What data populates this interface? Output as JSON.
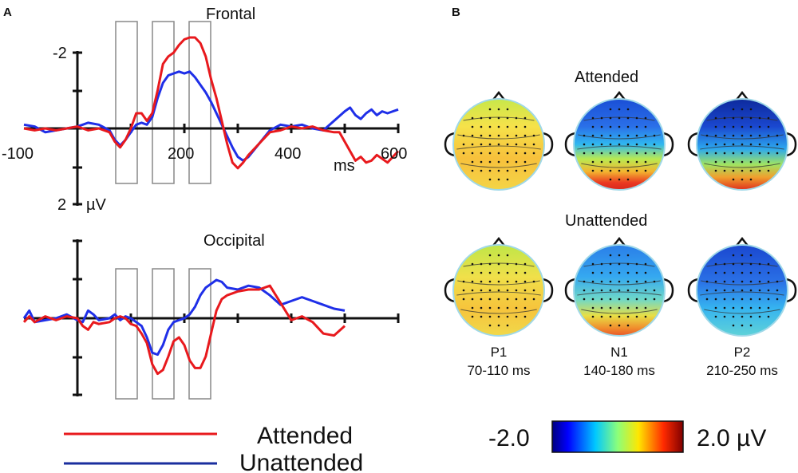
{
  "panel_a_letter": "A",
  "panel_b_letter": "B",
  "chart_data": [
    {
      "type": "line",
      "panel": "A",
      "title": "Frontal",
      "xlabel": "ms",
      "ylabel": "µV",
      "xlim": [
        -100,
        600
      ],
      "ylim": [
        -2.2,
        2.0
      ],
      "y_inverted": true,
      "x_tick_labels": [
        "-100",
        "200",
        "400",
        "600"
      ],
      "y_tick_labels": [
        "-2",
        "2"
      ],
      "analysis_windows_ms": [
        [
          70,
          110
        ],
        [
          140,
          180
        ],
        [
          210,
          250
        ]
      ],
      "series": [
        {
          "name": "Attended",
          "color": "#e8191d",
          "x": [
            -100,
            -80,
            -60,
            -40,
            -20,
            0,
            10,
            20,
            40,
            60,
            70,
            80,
            90,
            100,
            110,
            120,
            130,
            140,
            150,
            160,
            170,
            180,
            190,
            200,
            210,
            220,
            230,
            240,
            250,
            260,
            270,
            280,
            290,
            300,
            310,
            320,
            340,
            360,
            380,
            400,
            420,
            440,
            460,
            480,
            490,
            500,
            510,
            520,
            530,
            540,
            550,
            560,
            570,
            580,
            590,
            600
          ],
          "y": [
            0.0,
            0.05,
            0.0,
            0.05,
            0.0,
            -0.05,
            0.0,
            0.05,
            0.0,
            0.1,
            0.35,
            0.5,
            0.3,
            0.0,
            -0.4,
            -0.4,
            -0.2,
            -0.4,
            -1.0,
            -1.7,
            -1.9,
            -2.0,
            -2.2,
            -2.35,
            -2.4,
            -2.4,
            -2.25,
            -1.9,
            -1.3,
            -0.8,
            -0.2,
            0.4,
            0.9,
            1.05,
            0.9,
            0.7,
            0.4,
            0.1,
            0.05,
            -0.05,
            0.0,
            -0.05,
            0.05,
            0.1,
            0.1,
            0.35,
            0.6,
            0.85,
            0.75,
            0.9,
            0.85,
            0.7,
            0.8,
            0.9,
            0.75,
            0.6
          ]
        },
        {
          "name": "Unattended",
          "color": "#1f2fe8",
          "x": [
            -100,
            -80,
            -60,
            -40,
            -20,
            0,
            10,
            20,
            40,
            60,
            70,
            80,
            90,
            100,
            110,
            120,
            130,
            140,
            150,
            160,
            170,
            180,
            190,
            200,
            210,
            220,
            230,
            240,
            250,
            260,
            270,
            280,
            290,
            300,
            310,
            320,
            340,
            360,
            380,
            400,
            420,
            440,
            460,
            480,
            500,
            510,
            520,
            530,
            540,
            550,
            560,
            570,
            580,
            590,
            600
          ],
          "y": [
            -0.1,
            -0.05,
            0.1,
            0.05,
            0.0,
            -0.05,
            -0.1,
            -0.15,
            -0.1,
            0.05,
            0.3,
            0.45,
            0.3,
            0.1,
            -0.1,
            -0.15,
            -0.1,
            -0.3,
            -0.8,
            -1.2,
            -1.4,
            -1.45,
            -1.5,
            -1.45,
            -1.5,
            -1.35,
            -1.15,
            -0.95,
            -0.7,
            -0.4,
            -0.1,
            0.2,
            0.5,
            0.75,
            0.85,
            0.75,
            0.4,
            0.05,
            -0.1,
            -0.05,
            -0.1,
            0.0,
            0.05,
            -0.2,
            -0.45,
            -0.55,
            -0.35,
            -0.25,
            -0.4,
            -0.5,
            -0.35,
            -0.45,
            -0.4,
            -0.45,
            -0.5
          ]
        }
      ]
    },
    {
      "type": "line",
      "panel": "A",
      "title": "Occipital",
      "xlim": [
        -100,
        600
      ],
      "ylim": [
        -2.2,
        2.0
      ],
      "y_inverted": true,
      "analysis_windows_ms": [
        [
          70,
          110
        ],
        [
          140,
          180
        ],
        [
          210,
          250
        ]
      ],
      "series": [
        {
          "name": "Attended",
          "color": "#e8191d",
          "x": [
            -100,
            -90,
            -80,
            -60,
            -40,
            -20,
            0,
            10,
            20,
            30,
            40,
            60,
            70,
            80,
            90,
            100,
            110,
            120,
            130,
            140,
            150,
            160,
            170,
            180,
            190,
            200,
            210,
            220,
            230,
            240,
            250,
            260,
            270,
            280,
            290,
            300,
            320,
            340,
            360,
            380,
            400,
            420,
            440,
            460,
            480,
            500
          ],
          "y": [
            0.1,
            -0.05,
            0.1,
            -0.05,
            0.05,
            -0.05,
            0.0,
            0.2,
            0.3,
            0.1,
            0.15,
            0.1,
            0.0,
            -0.05,
            0.0,
            0.15,
            0.2,
            0.4,
            0.65,
            1.2,
            1.45,
            1.35,
            1.0,
            0.6,
            0.5,
            0.7,
            1.1,
            1.3,
            1.3,
            1.0,
            0.4,
            -0.2,
            -0.5,
            -0.6,
            -0.65,
            -0.7,
            -0.75,
            -0.75,
            -0.85,
            -0.4,
            0.05,
            -0.05,
            0.1,
            0.4,
            0.45,
            0.2
          ]
        },
        {
          "name": "Unattended",
          "color": "#1f2fe8",
          "x": [
            -100,
            -90,
            -80,
            -60,
            -40,
            -20,
            0,
            10,
            20,
            30,
            40,
            60,
            70,
            80,
            90,
            100,
            110,
            120,
            130,
            140,
            150,
            160,
            170,
            180,
            190,
            200,
            210,
            220,
            230,
            240,
            250,
            260,
            270,
            280,
            300,
            320,
            340,
            360,
            380,
            400,
            420,
            440,
            460,
            480,
            500
          ],
          "y": [
            0.0,
            -0.2,
            0.1,
            0.05,
            0.0,
            -0.1,
            0.05,
            0.1,
            -0.2,
            -0.1,
            0.05,
            0.0,
            -0.1,
            0.05,
            -0.05,
            0.0,
            0.1,
            0.2,
            0.5,
            0.9,
            0.95,
            0.7,
            0.3,
            0.1,
            0.05,
            0.0,
            -0.1,
            -0.3,
            -0.6,
            -0.8,
            -0.9,
            -1.0,
            -0.95,
            -0.8,
            -0.75,
            -0.85,
            -0.8,
            -0.6,
            -0.35,
            -0.45,
            -0.55,
            -0.45,
            -0.35,
            -0.25,
            -0.2
          ]
        }
      ]
    },
    {
      "type": "heatmap",
      "panel": "B",
      "subtype": "scalp topography",
      "row_titles": [
        "Attended",
        "Unattended"
      ],
      "components": [
        {
          "name": "P1",
          "window": "70-110 ms"
        },
        {
          "name": "N1",
          "window": "140-180 ms"
        },
        {
          "name": "P2",
          "window": "210-250 ms"
        }
      ],
      "colorbar": {
        "min_label": "-2.0",
        "max_label": "2.0 µV",
        "min": -2.0,
        "max": 2.0
      }
    }
  ],
  "legend": [
    {
      "label": "Attended",
      "color": "#e8191d"
    },
    {
      "label": "Unattended",
      "color": "#1a2e9e"
    }
  ]
}
